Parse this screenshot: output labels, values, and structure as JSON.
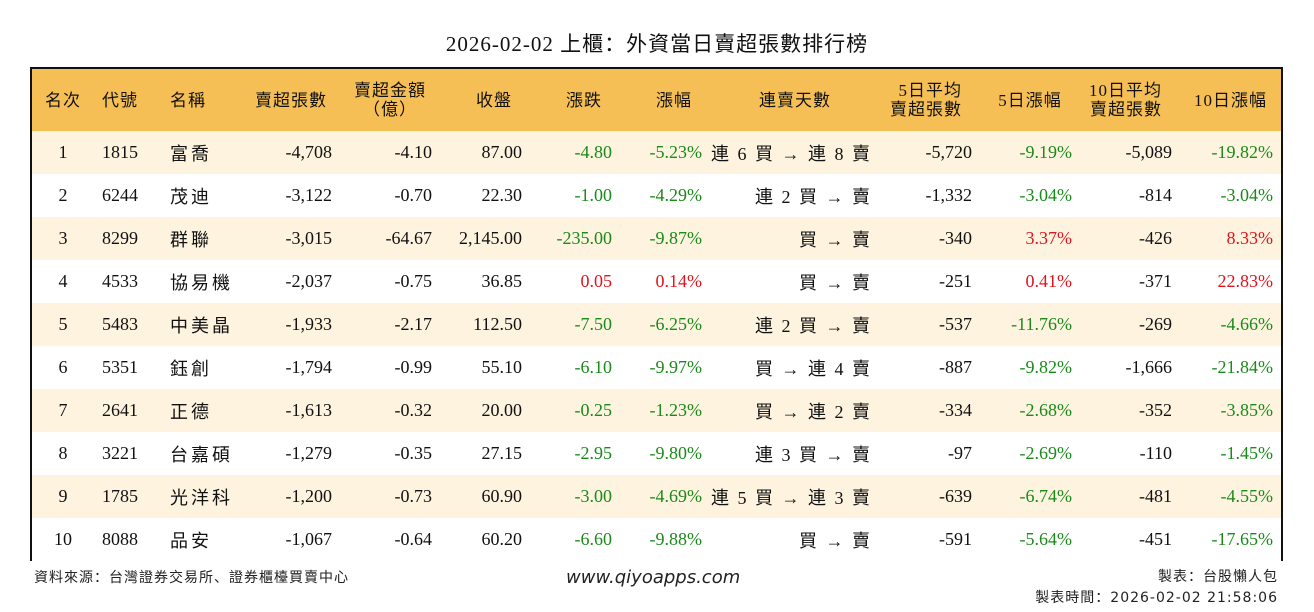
{
  "title": "2026-02-02 上櫃：外資當日賣超張數排行榜",
  "table": {
    "headers": [
      {
        "line1": "名次",
        "line2": ""
      },
      {
        "line1": "代號",
        "line2": ""
      },
      {
        "line1": "名稱",
        "line2": ""
      },
      {
        "line1": "賣超張數",
        "line2": ""
      },
      {
        "line1": "賣超金額",
        "line2": "（億）"
      },
      {
        "line1": "收盤",
        "line2": ""
      },
      {
        "line1": "漲跌",
        "line2": ""
      },
      {
        "line1": "漲幅",
        "line2": ""
      },
      {
        "line1": "連賣天數",
        "line2": ""
      },
      {
        "line1": "5日平均",
        "line2": "賣超張數"
      },
      {
        "line1": "5日漲幅",
        "line2": ""
      },
      {
        "line1": "10日平均",
        "line2": "賣超張數"
      },
      {
        "line1": "10日漲幅",
        "line2": ""
      }
    ],
    "rows": [
      {
        "rank": "1",
        "code": "1815",
        "name": "富喬",
        "net_sell": "-4,708",
        "amount": "-4.10",
        "close": "87.00",
        "change": "-4.80",
        "change_pct": "-5.23%",
        "streak": "連 6 買 → 連 8 賣",
        "avg5": "-5,720",
        "pct5": "-9.19%",
        "avg10": "-5,089",
        "pct10": "-19.82%"
      },
      {
        "rank": "2",
        "code": "6244",
        "name": "茂迪",
        "net_sell": "-3,122",
        "amount": "-0.70",
        "close": "22.30",
        "change": "-1.00",
        "change_pct": "-4.29%",
        "streak": "連 2 買 → 賣",
        "avg5": "-1,332",
        "pct5": "-3.04%",
        "avg10": "-814",
        "pct10": "-3.04%"
      },
      {
        "rank": "3",
        "code": "8299",
        "name": "群聯",
        "net_sell": "-3,015",
        "amount": "-64.67",
        "close": "2,145.00",
        "change": "-235.00",
        "change_pct": "-9.87%",
        "streak": "買 → 賣",
        "avg5": "-340",
        "pct5": "3.37%",
        "avg10": "-426",
        "pct10": "8.33%"
      },
      {
        "rank": "4",
        "code": "4533",
        "name": "協易機",
        "net_sell": "-2,037",
        "amount": "-0.75",
        "close": "36.85",
        "change": "0.05",
        "change_pct": "0.14%",
        "streak": "買 → 賣",
        "avg5": "-251",
        "pct5": "0.41%",
        "avg10": "-371",
        "pct10": "22.83%"
      },
      {
        "rank": "5",
        "code": "5483",
        "name": "中美晶",
        "net_sell": "-1,933",
        "amount": "-2.17",
        "close": "112.50",
        "change": "-7.50",
        "change_pct": "-6.25%",
        "streak": "連 2 買 → 賣",
        "avg5": "-537",
        "pct5": "-11.76%",
        "avg10": "-269",
        "pct10": "-4.66%"
      },
      {
        "rank": "6",
        "code": "5351",
        "name": "鈺創",
        "net_sell": "-1,794",
        "amount": "-0.99",
        "close": "55.10",
        "change": "-6.10",
        "change_pct": "-9.97%",
        "streak": "買 → 連 4 賣",
        "avg5": "-887",
        "pct5": "-9.82%",
        "avg10": "-1,666",
        "pct10": "-21.84%"
      },
      {
        "rank": "7",
        "code": "2641",
        "name": "正德",
        "net_sell": "-1,613",
        "amount": "-0.32",
        "close": "20.00",
        "change": "-0.25",
        "change_pct": "-1.23%",
        "streak": "買 → 連 2 賣",
        "avg5": "-334",
        "pct5": "-2.68%",
        "avg10": "-352",
        "pct10": "-3.85%"
      },
      {
        "rank": "8",
        "code": "3221",
        "name": "台嘉碩",
        "net_sell": "-1,279",
        "amount": "-0.35",
        "close": "27.15",
        "change": "-2.95",
        "change_pct": "-9.80%",
        "streak": "連 3 買 → 賣",
        "avg5": "-97",
        "pct5": "-2.69%",
        "avg10": "-110",
        "pct10": "-1.45%"
      },
      {
        "rank": "9",
        "code": "1785",
        "name": "光洋科",
        "net_sell": "-1,200",
        "amount": "-0.73",
        "close": "60.90",
        "change": "-3.00",
        "change_pct": "-4.69%",
        "streak": "連 5 買 → 連 3 賣",
        "avg5": "-639",
        "pct5": "-6.74%",
        "avg10": "-481",
        "pct10": "-4.55%"
      },
      {
        "rank": "10",
        "code": "8088",
        "name": "品安",
        "net_sell": "-1,067",
        "amount": "-0.64",
        "close": "60.20",
        "change": "-6.60",
        "change_pct": "-9.88%",
        "streak": "買 → 賣",
        "avg5": "-591",
        "pct5": "-5.64%",
        "avg10": "-451",
        "pct10": "-17.65%"
      }
    ]
  },
  "footer": {
    "source": "資料來源：台灣證券交易所、證券櫃檯買賣中心",
    "website": "www.qiyoapps.com",
    "author": "製表：台股懶人包",
    "generated_at": "製表時間：2026-02-02 21:58:06"
  },
  "colors": {
    "header_bg": "#f6bf55",
    "row_odd_bg": "#fdf3df",
    "row_even_bg": "#ffffff",
    "negative": "#1a8a1a",
    "positive": "#e0141e"
  }
}
